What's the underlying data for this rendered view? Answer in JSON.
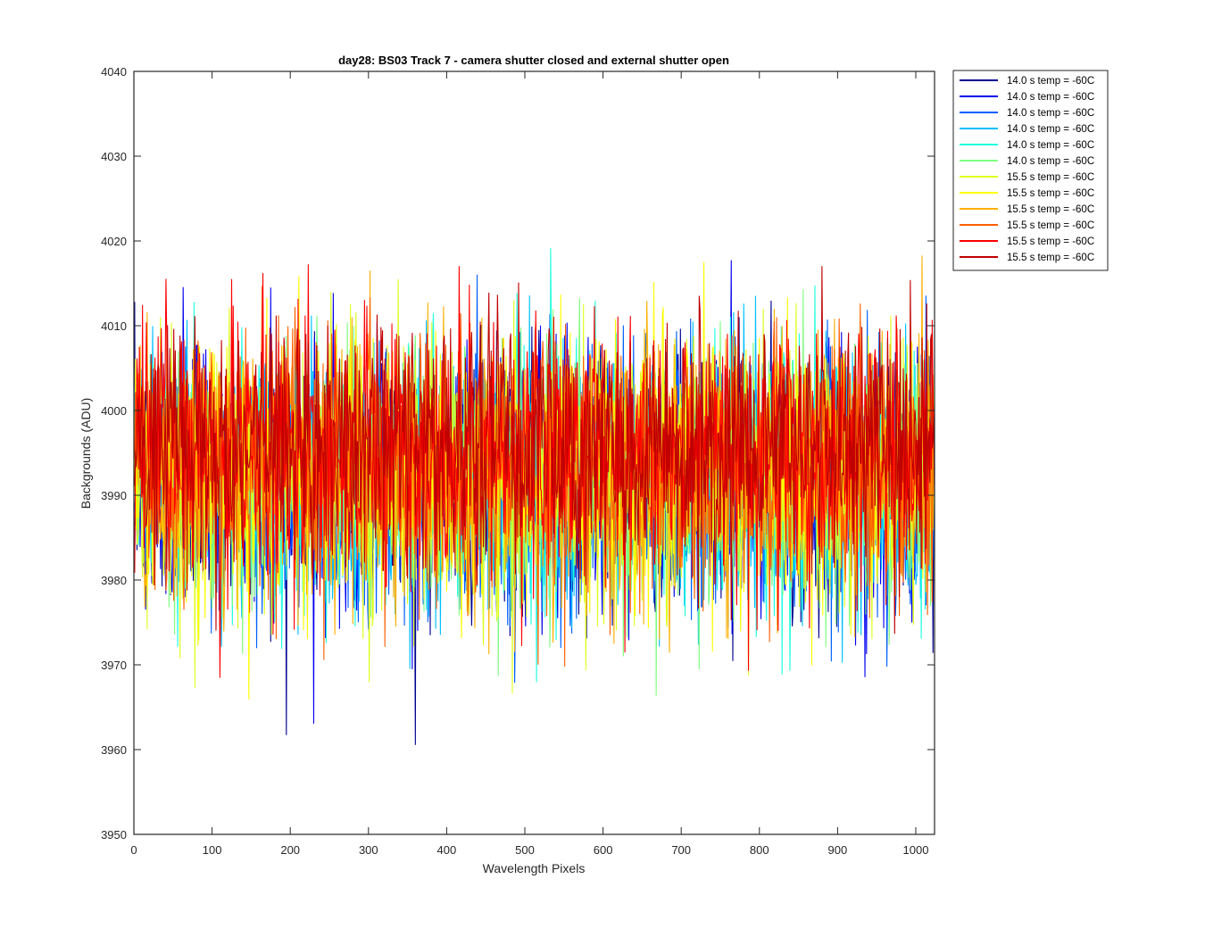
{
  "chart_data": {
    "type": "line",
    "title": "day28: BS03  Track 7 - camera shutter closed and external shutter open",
    "xlabel": "Wavelength Pixels",
    "ylabel": "Backgrounds (ADU)",
    "xlim": [
      0,
      1024
    ],
    "ylim": [
      3950,
      4040
    ],
    "x_ticks": [
      0,
      100,
      200,
      300,
      400,
      500,
      600,
      700,
      800,
      900,
      1000
    ],
    "y_ticks": [
      3950,
      3960,
      3970,
      3980,
      3990,
      4000,
      4010,
      4020,
      4030,
      4040
    ],
    "grid": false,
    "legend_position": "outside-top-right",
    "points_per_series": 1024,
    "series": [
      {
        "name": "14.0 s temp = -60C",
        "color": "#00008f",
        "mean": 3992,
        "spread": 7.5
      },
      {
        "name": "14.0 s temp = -60C",
        "color": "#0000ef",
        "mean": 3992,
        "spread": 7.5
      },
      {
        "name": "14.0 s temp = -60C",
        "color": "#005fff",
        "mean": 3992,
        "spread": 7.5
      },
      {
        "name": "14.0 s temp = -60C",
        "color": "#00bfff",
        "mean": 3992,
        "spread": 7.5
      },
      {
        "name": "14.0 s temp = -60C",
        "color": "#1fffdf",
        "mean": 3992,
        "spread": 7.5
      },
      {
        "name": "14.0 s temp = -60C",
        "color": "#7fff7f",
        "mean": 3992,
        "spread": 7.5
      },
      {
        "name": "15.5 s temp = -60C",
        "color": "#dfff1f",
        "mean": 3993,
        "spread": 7.5
      },
      {
        "name": "15.5 s temp = -60C",
        "color": "#ffff00",
        "mean": 3993,
        "spread": 7.5
      },
      {
        "name": "15.5 s temp = -60C",
        "color": "#ffaf00",
        "mean": 3993.5,
        "spread": 7.5
      },
      {
        "name": "15.5 s temp = -60C",
        "color": "#ff5f00",
        "mean": 3994,
        "spread": 7.5
      },
      {
        "name": "15.5 s temp = -60C",
        "color": "#ff0000",
        "mean": 3995,
        "spread": 7.5
      },
      {
        "name": "15.5 s temp = -60C",
        "color": "#bf0000",
        "mean": 3996,
        "spread": 7.5
      }
    ]
  }
}
